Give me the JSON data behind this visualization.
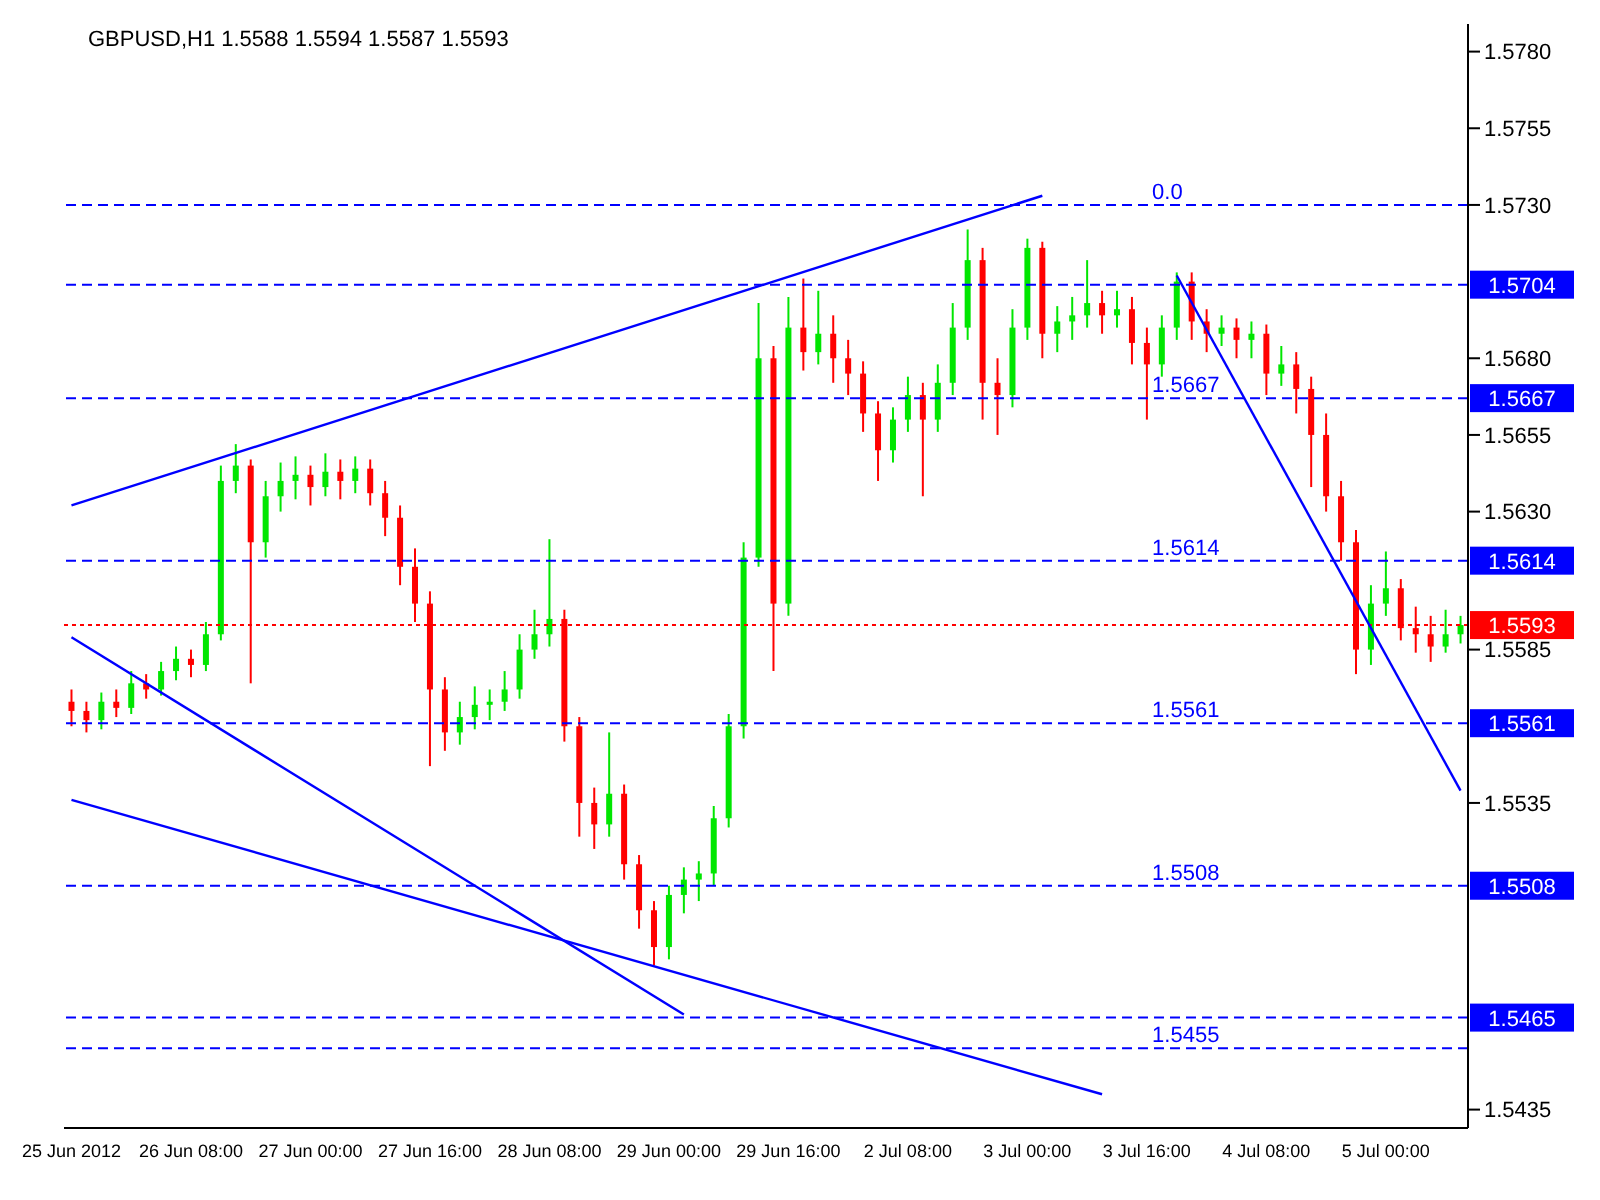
{
  "chart_data": {
    "type": "candlestick",
    "title": "GBPUSD,H1  1.5588 1.5594 1.5587 1.5593",
    "categories": [
      "25 Jun 2012",
      null,
      null,
      null,
      null,
      null,
      null,
      null,
      "26 Jun 08:00",
      null,
      null,
      null,
      null,
      null,
      null,
      null,
      "27 Jun 00:00",
      null,
      null,
      null,
      null,
      null,
      null,
      null,
      "27 Jun 16:00",
      null,
      null,
      null,
      null,
      null,
      null,
      null,
      "28 Jun 08:00",
      null,
      null,
      null,
      null,
      null,
      null,
      null,
      "29 Jun 00:00",
      null,
      null,
      null,
      null,
      null,
      null,
      null,
      "29 Jun 16:00",
      null,
      null,
      null,
      null,
      null,
      null,
      null,
      "2 Jul 08:00",
      null,
      null,
      null,
      null,
      null,
      null,
      null,
      "3 Jul 00:00",
      null,
      null,
      null,
      null,
      null,
      null,
      null,
      "3 Jul 16:00",
      null,
      null,
      null,
      null,
      null,
      null,
      null,
      "4 Jul 08:00",
      null,
      null,
      null,
      null,
      null,
      null,
      null,
      "5 Jul 00:00",
      null,
      null,
      null,
      null,
      null
    ],
    "ohlc": [
      [
        1.5568,
        1.5572,
        1.556,
        1.5565
      ],
      [
        1.5565,
        1.5568,
        1.5558,
        1.5562
      ],
      [
        1.5562,
        1.5571,
        1.5559,
        1.5568
      ],
      [
        1.5568,
        1.5572,
        1.5563,
        1.5566
      ],
      [
        1.5566,
        1.5578,
        1.5564,
        1.5574
      ],
      [
        1.5574,
        1.5577,
        1.5569,
        1.5572
      ],
      [
        1.5572,
        1.5581,
        1.557,
        1.5578
      ],
      [
        1.5578,
        1.5586,
        1.5575,
        1.5582
      ],
      [
        1.5582,
        1.5585,
        1.5576,
        1.558
      ],
      [
        1.558,
        1.5594,
        1.5578,
        1.559
      ],
      [
        1.559,
        1.5645,
        1.5588,
        1.564
      ],
      [
        1.564,
        1.5652,
        1.5636,
        1.5645
      ],
      [
        1.5645,
        1.5647,
        1.5574,
        1.562
      ],
      [
        1.562,
        1.564,
        1.5615,
        1.5635
      ],
      [
        1.5635,
        1.5646,
        1.563,
        1.564
      ],
      [
        1.564,
        1.5648,
        1.5634,
        1.5642
      ],
      [
        1.5642,
        1.5645,
        1.5632,
        1.5638
      ],
      [
        1.5638,
        1.5649,
        1.5635,
        1.5643
      ],
      [
        1.5643,
        1.5647,
        1.5634,
        1.564
      ],
      [
        1.564,
        1.5648,
        1.5636,
        1.5644
      ],
      [
        1.5644,
        1.5647,
        1.5632,
        1.5636
      ],
      [
        1.5636,
        1.564,
        1.5622,
        1.5628
      ],
      [
        1.5628,
        1.5632,
        1.5606,
        1.5612
      ],
      [
        1.5612,
        1.5618,
        1.5594,
        1.56
      ],
      [
        1.56,
        1.5604,
        1.5547,
        1.5572
      ],
      [
        1.5572,
        1.5576,
        1.5552,
        1.5558
      ],
      [
        1.5558,
        1.5568,
        1.5554,
        1.5563
      ],
      [
        1.5563,
        1.5573,
        1.5559,
        1.5567
      ],
      [
        1.5567,
        1.5572,
        1.5562,
        1.5568
      ],
      [
        1.5568,
        1.5578,
        1.5565,
        1.5572
      ],
      [
        1.5572,
        1.559,
        1.5569,
        1.5585
      ],
      [
        1.5585,
        1.5598,
        1.5582,
        1.559
      ],
      [
        1.559,
        1.5621,
        1.5586,
        1.5595
      ],
      [
        1.5595,
        1.5598,
        1.5555,
        1.556
      ],
      [
        1.556,
        1.5563,
        1.5524,
        1.5535
      ],
      [
        1.5535,
        1.554,
        1.552,
        1.5528
      ],
      [
        1.5528,
        1.5558,
        1.5524,
        1.5538
      ],
      [
        1.5538,
        1.5541,
        1.551,
        1.5515
      ],
      [
        1.5515,
        1.5518,
        1.5494,
        1.55
      ],
      [
        1.55,
        1.5503,
        1.5482,
        1.5488
      ],
      [
        1.5488,
        1.5508,
        1.5484,
        1.5505
      ],
      [
        1.5505,
        1.5514,
        1.5499,
        1.551
      ],
      [
        1.551,
        1.5516,
        1.5503,
        1.5512
      ],
      [
        1.5512,
        1.5534,
        1.5508,
        1.553
      ],
      [
        1.553,
        1.5564,
        1.5527,
        1.556
      ],
      [
        1.556,
        1.562,
        1.5556,
        1.5615
      ],
      [
        1.5615,
        1.5698,
        1.5612,
        1.568
      ],
      [
        1.568,
        1.5684,
        1.5578,
        1.56
      ],
      [
        1.56,
        1.57,
        1.5596,
        1.569
      ],
      [
        1.569,
        1.5706,
        1.5676,
        1.5682
      ],
      [
        1.5682,
        1.5702,
        1.5678,
        1.5688
      ],
      [
        1.5688,
        1.5694,
        1.5672,
        1.568
      ],
      [
        1.568,
        1.5686,
        1.5668,
        1.5675
      ],
      [
        1.5675,
        1.5679,
        1.5656,
        1.5662
      ],
      [
        1.5662,
        1.5666,
        1.564,
        1.565
      ],
      [
        1.565,
        1.5664,
        1.5646,
        1.566
      ],
      [
        1.566,
        1.5674,
        1.5656,
        1.5668
      ],
      [
        1.5668,
        1.5672,
        1.5635,
        1.566
      ],
      [
        1.566,
        1.5678,
        1.5656,
        1.5672
      ],
      [
        1.5672,
        1.5698,
        1.5668,
        1.569
      ],
      [
        1.569,
        1.5722,
        1.5686,
        1.5712
      ],
      [
        1.5712,
        1.5716,
        1.566,
        1.5672
      ],
      [
        1.5672,
        1.568,
        1.5655,
        1.5668
      ],
      [
        1.5668,
        1.5696,
        1.5664,
        1.569
      ],
      [
        1.569,
        1.5719,
        1.5686,
        1.5716
      ],
      [
        1.5716,
        1.5718,
        1.568,
        1.5688
      ],
      [
        1.5688,
        1.5697,
        1.5682,
        1.5692
      ],
      [
        1.5692,
        1.57,
        1.5686,
        1.5694
      ],
      [
        1.5694,
        1.5712,
        1.569,
        1.5698
      ],
      [
        1.5698,
        1.5702,
        1.5688,
        1.5694
      ],
      [
        1.5694,
        1.5702,
        1.569,
        1.5696
      ],
      [
        1.5696,
        1.57,
        1.5678,
        1.5685
      ],
      [
        1.5685,
        1.569,
        1.566,
        1.5678
      ],
      [
        1.5678,
        1.5694,
        1.5674,
        1.569
      ],
      [
        1.569,
        1.5708,
        1.5686,
        1.5705
      ],
      [
        1.5705,
        1.5708,
        1.5686,
        1.5692
      ],
      [
        1.5692,
        1.5696,
        1.5682,
        1.5688
      ],
      [
        1.5688,
        1.5694,
        1.5684,
        1.569
      ],
      [
        1.569,
        1.5693,
        1.568,
        1.5686
      ],
      [
        1.5686,
        1.5692,
        1.568,
        1.5688
      ],
      [
        1.5688,
        1.5691,
        1.5668,
        1.5675
      ],
      [
        1.5675,
        1.5684,
        1.5671,
        1.5678
      ],
      [
        1.5678,
        1.5682,
        1.5662,
        1.567
      ],
      [
        1.567,
        1.5674,
        1.5638,
        1.5655
      ],
      [
        1.5655,
        1.5662,
        1.563,
        1.5635
      ],
      [
        1.5635,
        1.564,
        1.5614,
        1.562
      ],
      [
        1.562,
        1.5624,
        1.5577,
        1.5585
      ],
      [
        1.5585,
        1.5606,
        1.558,
        1.56
      ],
      [
        1.56,
        1.5617,
        1.5596,
        1.5605
      ],
      [
        1.5605,
        1.5608,
        1.5588,
        1.5592
      ],
      [
        1.5592,
        1.5599,
        1.5584,
        1.559
      ],
      [
        1.559,
        1.5596,
        1.5581,
        1.5586
      ],
      [
        1.5586,
        1.5598,
        1.5584,
        1.559
      ],
      [
        1.559,
        1.5596,
        1.5587,
        1.5593
      ]
    ],
    "series": [
      {
        "type": "line",
        "color": "#0000ff",
        "values": [
          1.5632,
          null,
          null,
          null,
          null,
          null,
          null,
          null,
          null,
          null,
          null,
          null,
          null,
          null,
          null,
          null,
          null,
          null,
          null,
          null,
          null,
          null,
          null,
          null,
          null,
          null,
          null,
          null,
          null,
          null,
          null,
          null,
          null,
          null,
          null,
          null,
          null,
          null,
          null,
          null,
          null,
          null,
          null,
          null,
          null,
          null,
          null,
          null,
          null,
          null,
          null,
          null,
          null,
          null,
          null,
          null,
          null,
          null,
          null,
          null,
          null,
          null,
          null,
          null,
          null,
          1.5733,
          null,
          null,
          null,
          null,
          null,
          null,
          null,
          null,
          null,
          null,
          null,
          null,
          null,
          null,
          null,
          null,
          null,
          null,
          null,
          null,
          null,
          null,
          null,
          null,
          null,
          null,
          null,
          null
        ]
      },
      {
        "type": "line",
        "color": "#0000ff",
        "values": [
          1.5589,
          null,
          null,
          null,
          null,
          null,
          null,
          null,
          null,
          null,
          null,
          null,
          null,
          null,
          null,
          null,
          null,
          null,
          null,
          null,
          null,
          null,
          null,
          null,
          null,
          null,
          null,
          null,
          null,
          null,
          null,
          null,
          null,
          null,
          null,
          null,
          null,
          null,
          null,
          null,
          null,
          1.5466,
          null,
          null,
          null,
          null,
          null,
          null,
          null,
          null,
          null,
          null,
          null,
          null,
          null,
          null,
          null,
          null,
          null,
          null,
          null,
          null,
          null,
          null,
          null,
          null,
          null,
          null,
          null,
          null,
          null,
          null,
          null,
          null,
          null,
          null,
          null,
          null,
          null,
          null,
          null,
          null,
          null,
          null,
          null,
          null,
          null,
          null,
          null,
          null,
          null,
          null,
          null,
          null
        ]
      },
      {
        "type": "line",
        "color": "#0000ff",
        "values": [
          1.5536,
          null,
          null,
          null,
          null,
          null,
          null,
          null,
          null,
          null,
          null,
          null,
          null,
          null,
          null,
          null,
          null,
          null,
          null,
          null,
          null,
          null,
          null,
          null,
          null,
          null,
          null,
          null,
          null,
          null,
          null,
          null,
          null,
          null,
          null,
          null,
          null,
          null,
          null,
          null,
          null,
          null,
          null,
          null,
          null,
          null,
          null,
          null,
          null,
          null,
          null,
          null,
          null,
          null,
          null,
          null,
          null,
          null,
          null,
          null,
          null,
          null,
          null,
          null,
          null,
          null,
          null,
          null,
          null,
          1.544,
          null,
          null,
          null,
          null,
          null,
          null,
          null,
          null,
          null,
          null,
          null,
          null,
          null,
          null,
          null,
          null,
          null,
          null,
          null,
          null,
          null,
          null,
          null,
          null
        ]
      },
      {
        "type": "line",
        "color": "#0000ff",
        "values": [
          null,
          null,
          null,
          null,
          null,
          null,
          null,
          null,
          null,
          null,
          null,
          null,
          null,
          null,
          null,
          null,
          null,
          null,
          null,
          null,
          null,
          null,
          null,
          null,
          null,
          null,
          null,
          null,
          null,
          null,
          null,
          null,
          null,
          null,
          null,
          null,
          null,
          null,
          null,
          null,
          null,
          null,
          null,
          null,
          null,
          null,
          null,
          null,
          null,
          null,
          null,
          null,
          null,
          null,
          null,
          null,
          null,
          null,
          null,
          null,
          null,
          null,
          null,
          null,
          null,
          null,
          null,
          null,
          null,
          null,
          null,
          null,
          null,
          null,
          1.5707,
          null,
          null,
          null,
          null,
          null,
          null,
          null,
          null,
          null,
          null,
          null,
          null,
          null,
          null,
          null,
          null,
          null,
          null,
          1.5539
        ]
      }
    ],
    "ylim": [
      1.5429,
      1.5789
    ],
    "yticks": [
      {
        "value": 1.578,
        "label": "1.5780"
      },
      {
        "value": 1.5755,
        "label": "1.5755"
      },
      {
        "value": 1.573,
        "label": "1.5730"
      },
      {
        "value": 1.568,
        "label": "1.5680"
      },
      {
        "value": 1.5655,
        "label": "1.5655"
      },
      {
        "value": 1.563,
        "label": "1.5630"
      },
      {
        "value": 1.5585,
        "label": "1.5585"
      },
      {
        "value": 1.5535,
        "label": "1.5535"
      },
      {
        "value": 1.5435,
        "label": "1.5435"
      }
    ],
    "ref_lines": [
      {
        "axis": "y",
        "value": 1.5704,
        "label": "1.5704",
        "color": "#0000ff",
        "line_style": "dashed"
      },
      {
        "axis": "y",
        "value": 1.5667,
        "label": "1.5667",
        "color": "#0000ff",
        "line_style": "dashed"
      },
      {
        "axis": "y",
        "value": 1.5614,
        "label": "1.5614",
        "color": "#0000ff",
        "line_style": "dashed"
      },
      {
        "axis": "y",
        "value": 1.5593,
        "label": "1.5593",
        "color": "#ff0000",
        "line_style": "dotted"
      },
      {
        "axis": "y",
        "value": 1.5561,
        "label": "1.5561",
        "color": "#0000ff",
        "line_style": "dashed"
      },
      {
        "axis": "y",
        "value": 1.5508,
        "label": "1.5508",
        "color": "#0000ff",
        "line_style": "dashed"
      },
      {
        "axis": "y",
        "value": 1.5465,
        "label": "1.5465",
        "color": "#0000ff",
        "line_style": "dashed"
      },
      {
        "axis": "y",
        "value": 1.573,
        "color": "#0000ff",
        "line_style": "dashed"
      },
      {
        "axis": "y",
        "value": 1.5455,
        "color": "#0000ff",
        "line_style": "dashed"
      }
    ],
    "annotations": [
      {
        "text": "0.0",
        "y": 1.573
      },
      {
        "text": "1.5667",
        "y": 1.5667
      },
      {
        "text": "1.5614",
        "y": 1.5614
      },
      {
        "text": "1.5561",
        "y": 1.5561
      },
      {
        "text": "1.5508",
        "y": 1.5508
      },
      {
        "text": "1.5455",
        "y": 1.5455
      }
    ]
  }
}
